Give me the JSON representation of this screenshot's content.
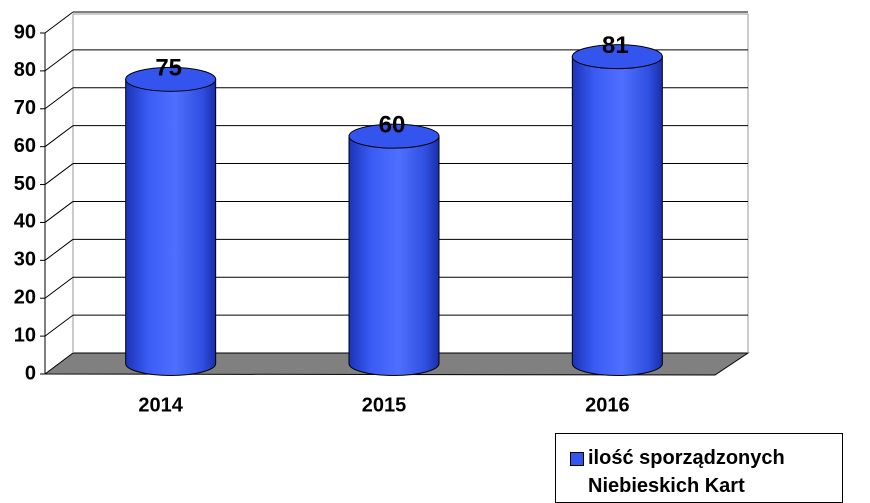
{
  "chart_data": {
    "type": "bar",
    "categories": [
      "2014",
      "2015",
      "2016"
    ],
    "series": [
      {
        "name": "ilość sporządzonych Niebieskich Kart",
        "color": "#3355ee",
        "values": [
          75,
          60,
          81
        ]
      }
    ],
    "ylim": [
      0,
      90
    ],
    "yticks": [
      0,
      10,
      20,
      30,
      40,
      50,
      60,
      70,
      80,
      90
    ],
    "grid": true,
    "legend": "bottom-right"
  }
}
